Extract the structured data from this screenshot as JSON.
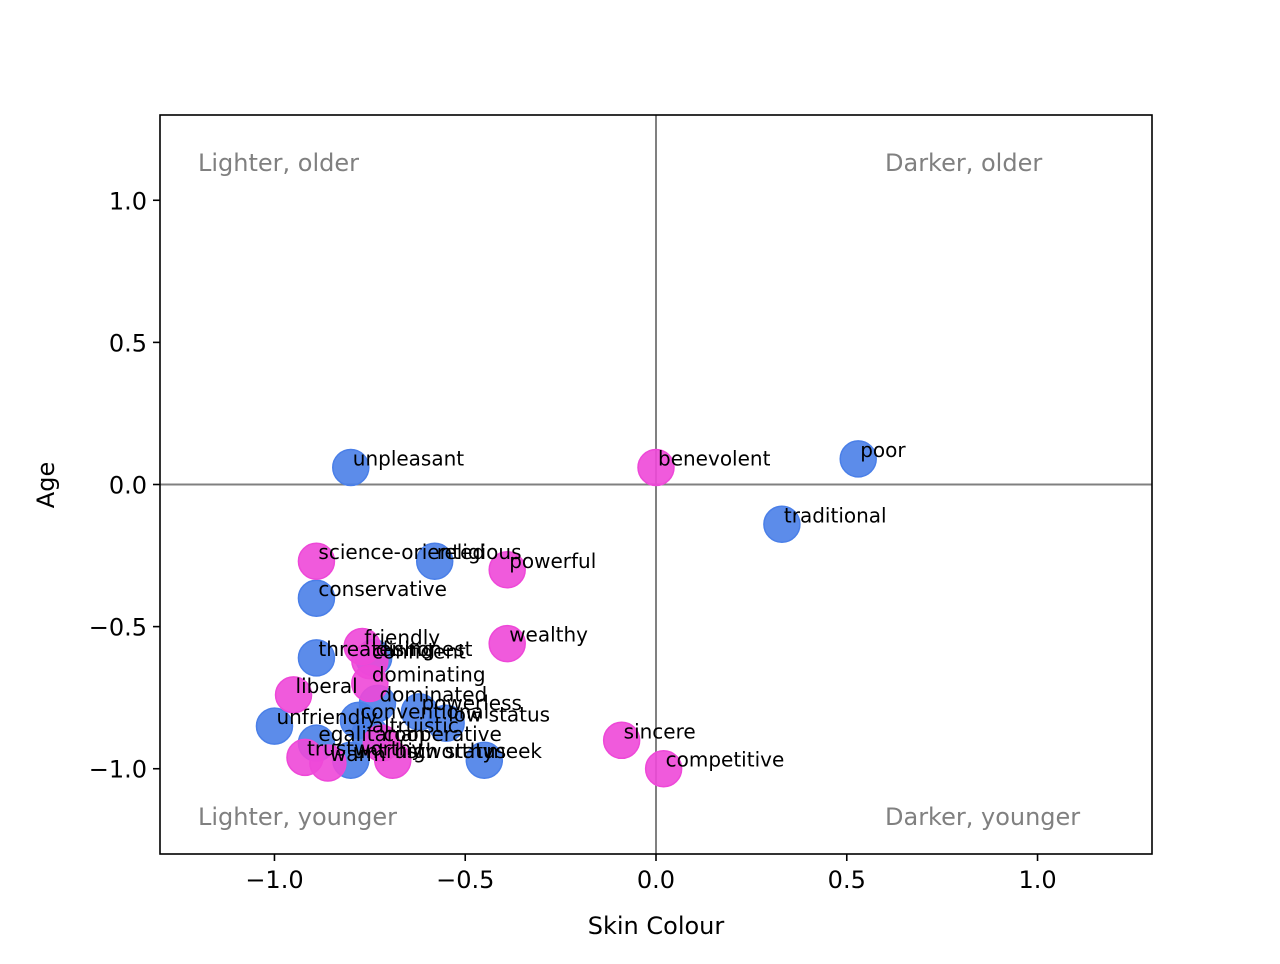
{
  "chart_data": {
    "type": "scatter",
    "title": "",
    "xlabel": "Skin Colour",
    "ylabel": "Age",
    "xlim": [
      -1.3,
      1.3
    ],
    "ylim": [
      -1.3,
      1.3
    ],
    "xticks": [
      -1.0,
      -0.5,
      0.0,
      0.5,
      1.0
    ],
    "yticks": [
      1.0,
      0.5,
      0.0,
      -0.5,
      -1.0
    ],
    "xtick_labels": [
      "−1.0",
      "−0.5",
      "0.0",
      "0.5",
      "1.0"
    ],
    "ytick_labels": [
      "1.0",
      "0.5",
      "0.0",
      "−0.5",
      "−1.0"
    ],
    "reference_lines": {
      "x": 0,
      "y": 0,
      "color": "#808080"
    },
    "grid": false,
    "legend": false,
    "quadrant_labels": [
      {
        "text": "Lighter, older",
        "position": "top-left"
      },
      {
        "text": "Darker, older",
        "position": "top-right"
      },
      {
        "text": "Lighter, younger",
        "position": "bottom-left"
      },
      {
        "text": "Darker, younger",
        "position": "bottom-right"
      }
    ],
    "colors": {
      "blue": "#4a7fe8",
      "magenta": "#ee48d8",
      "quadrant_text": "#808080"
    },
    "series": [
      {
        "color": "#4a7fe8",
        "points": [
          {
            "label": "unpleasant",
            "x": -0.8,
            "y": 0.06
          },
          {
            "label": "poor",
            "x": 0.53,
            "y": 0.09
          },
          {
            "label": "traditional",
            "x": 0.33,
            "y": -0.14
          },
          {
            "label": "religious",
            "x": -0.58,
            "y": -0.27
          },
          {
            "label": "conservative",
            "x": -0.89,
            "y": -0.4
          },
          {
            "label": "threatening",
            "x": -0.89,
            "y": -0.61
          },
          {
            "label": "dishonest",
            "x": -0.74,
            "y": -0.61
          },
          {
            "label": "dominated",
            "x": -0.73,
            "y": -0.77
          },
          {
            "label": "powerless",
            "x": -0.62,
            "y": -0.8
          },
          {
            "label": "unfriendly",
            "x": -1.0,
            "y": -0.85
          },
          {
            "label": "conventional",
            "x": -0.78,
            "y": -0.83
          },
          {
            "label": "low status",
            "x": -0.55,
            "y": -0.84
          },
          {
            "label": "egalitarian",
            "x": -0.89,
            "y": -0.91
          },
          {
            "label": "altruistic",
            "x": -0.75,
            "y": -0.88
          },
          {
            "label": "untrustworthy",
            "x": -0.8,
            "y": -0.97
          },
          {
            "label": "meek",
            "x": -0.45,
            "y": -0.97
          }
        ]
      },
      {
        "color": "#ee48d8",
        "points": [
          {
            "label": "benevolent",
            "x": 0.0,
            "y": 0.06
          },
          {
            "label": "science-oriented",
            "x": -0.89,
            "y": -0.27
          },
          {
            "label": "powerful",
            "x": -0.39,
            "y": -0.3
          },
          {
            "label": "wealthy",
            "x": -0.39,
            "y": -0.56
          },
          {
            "label": "friendly",
            "x": -0.77,
            "y": -0.57
          },
          {
            "label": "confident",
            "x": -0.75,
            "y": -0.62
          },
          {
            "label": "dominating",
            "x": -0.75,
            "y": -0.7
          },
          {
            "label": "liberal",
            "x": -0.95,
            "y": -0.74
          },
          {
            "label": "sincere",
            "x": -0.09,
            "y": -0.9
          },
          {
            "label": "competitive",
            "x": 0.02,
            "y": -1.0
          },
          {
            "label": "cooperative",
            "x": -0.72,
            "y": -0.91
          },
          {
            "label": "trustworthy",
            "x": -0.92,
            "y": -0.96
          },
          {
            "label": "warm",
            "x": -0.86,
            "y": -0.98
          },
          {
            "label": "high status",
            "x": -0.69,
            "y": -0.97
          }
        ]
      }
    ]
  }
}
